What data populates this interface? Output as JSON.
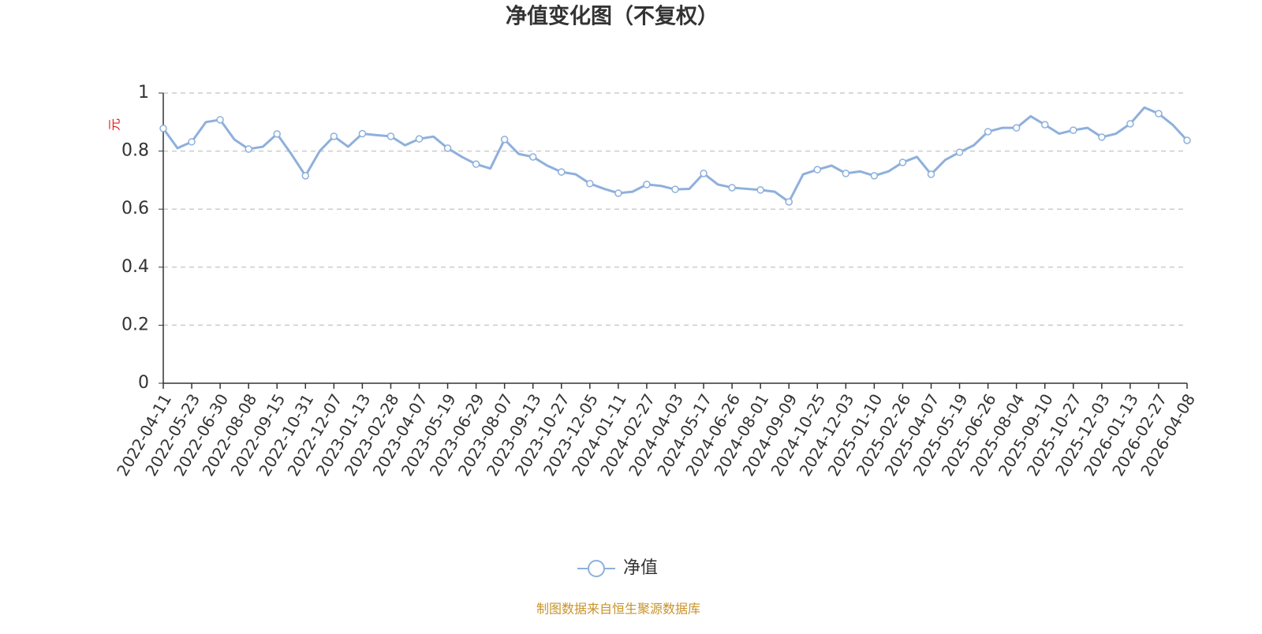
{
  "chart_data": {
    "type": "line",
    "title": "净值变化图（不复权）",
    "y_label": "元",
    "categories": [
      "2022-04-11",
      null,
      "2022-05-23",
      null,
      "2022-06-30",
      null,
      "2022-08-08",
      null,
      "2022-09-15",
      null,
      "2022-10-31",
      null,
      "2022-12-07",
      null,
      "2023-01-13",
      null,
      "2023-02-28",
      null,
      "2023-04-07",
      null,
      "2023-05-19",
      null,
      "2023-06-29",
      null,
      "2023-08-07",
      null,
      "2023-09-13",
      null,
      "2023-10-27",
      null,
      "2023-12-05",
      null,
      "2024-01-11",
      null,
      "2024-02-27",
      null,
      "2024-04-03",
      null,
      "2024-05-17",
      null,
      "2024-06-26",
      null,
      "2024-08-01",
      null,
      "2024-09-09",
      null,
      "2024-10-25",
      null,
      "2024-12-03",
      null,
      "2025-01-10",
      null,
      "2025-02-26",
      null,
      "2025-04-07",
      null,
      "2025-05-19",
      null,
      "2025-06-26",
      null,
      "2025-08-04",
      null,
      "2025-09-10",
      null,
      "2025-10-27",
      null,
      "2025-12-03",
      null,
      "2026-01-13",
      null,
      "2026-02-27",
      null,
      "2026-04-08"
    ],
    "series": [
      {
        "name": "净值",
        "color": "#8eb0dc",
        "values": [
          0.878,
          0.81,
          0.832,
          0.9,
          0.908,
          0.84,
          0.807,
          0.815,
          0.859,
          0.79,
          0.715,
          0.8,
          0.851,
          0.815,
          0.86,
          0.855,
          0.851,
          0.82,
          0.842,
          0.85,
          0.81,
          0.78,
          0.755,
          0.74,
          0.84,
          0.79,
          0.78,
          0.75,
          0.728,
          0.72,
          0.688,
          0.67,
          0.655,
          0.66,
          0.685,
          0.68,
          0.668,
          0.67,
          0.723,
          0.685,
          0.674,
          0.67,
          0.666,
          0.66,
          0.625,
          0.72,
          0.736,
          0.75,
          0.723,
          0.73,
          0.715,
          0.73,
          0.761,
          0.78,
          0.72,
          0.77,
          0.796,
          0.82,
          0.867,
          0.88,
          0.88,
          0.92,
          0.891,
          0.86,
          0.872,
          0.88,
          0.848,
          0.86,
          0.894,
          0.95,
          0.929,
          0.89,
          0.837
        ]
      }
    ],
    "ylim": [
      0,
      1
    ],
    "yticks": [
      0,
      0.2,
      0.4,
      0.6,
      0.8,
      1
    ],
    "grid": true
  },
  "footer": "制图数据来自恒生聚源数据库"
}
